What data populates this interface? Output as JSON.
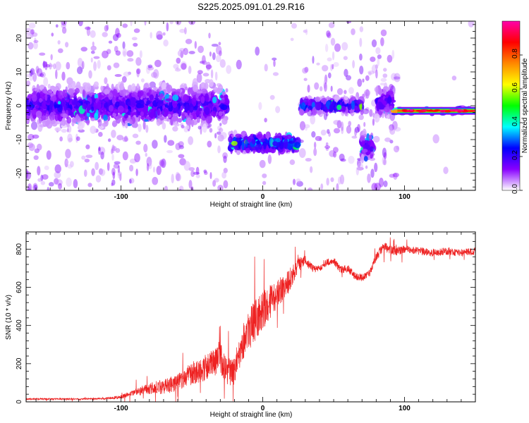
{
  "title": "S225.2025.091.01.29.R16",
  "chart_data": [
    {
      "type": "heatmap",
      "xlabel": "Height of straight line (km)",
      "ylabel": "Frequency (Hz)",
      "xlim": [
        -167,
        150
      ],
      "ylim": [
        -25,
        25
      ],
      "xticks": [
        -100,
        0,
        100
      ],
      "yticks": [
        -20,
        -10,
        0,
        10,
        20
      ],
      "colorbar": {
        "label": "Normalized spectral amplitude",
        "range": [
          0,
          1
        ],
        "ticks": [
          "0.0",
          "0.2",
          "0.4",
          "0.6",
          "0.8"
        ],
        "colors": [
          "#ffffff",
          "#8800ff",
          "#0000ff",
          "#00ffff",
          "#00ff00",
          "#ffff00",
          "#ff8800",
          "#ff0000",
          "#ff00aa"
        ]
      },
      "bands": [
        {
          "x": [
            -167,
            -25
          ],
          "freq": 0,
          "spread": 4.5,
          "amplitude": 0.22
        },
        {
          "x": [
            -23,
            25
          ],
          "freq": -11,
          "spread": 2.0,
          "amplitude": 0.35
        },
        {
          "x": [
            27,
            70
          ],
          "freq": 0,
          "spread": 1.5,
          "amplitude": 0.3
        },
        {
          "x": [
            70,
            78
          ],
          "freq": -12,
          "spread": 3.0,
          "amplitude": 0.2
        },
        {
          "x": [
            80,
            92
          ],
          "freq": 1,
          "spread": 3.5,
          "amplitude": 0.2
        },
        {
          "x": [
            92,
            150
          ],
          "freq": -1.5,
          "spread": 0.8,
          "amplitude": 0.85
        }
      ]
    },
    {
      "type": "line",
      "xlabel": "Height of straight line (km)",
      "ylabel": "SNR (10 * v/v)",
      "xlim": [
        -167,
        150
      ],
      "ylim": [
        0,
        890
      ],
      "xticks": [
        -100,
        0,
        100
      ],
      "yticks": [
        0,
        200,
        400,
        600,
        800
      ],
      "color": "#ee2222",
      "series": [
        {
          "x": [
            -167,
            -130,
            -110,
            -100,
            -90,
            -80,
            -70,
            -60,
            -50,
            -40,
            -35,
            -30,
            -25,
            -20,
            -15,
            -10,
            -5,
            0,
            5,
            10,
            15,
            20,
            25,
            30,
            35,
            40,
            45,
            50,
            55,
            60,
            65,
            70,
            75,
            80,
            85,
            90,
            95,
            100,
            110,
            120,
            130,
            140,
            150
          ],
          "values": [
            15,
            15,
            18,
            25,
            50,
            70,
            80,
            100,
            150,
            180,
            200,
            240,
            150,
            170,
            300,
            380,
            430,
            480,
            520,
            560,
            600,
            650,
            720,
            740,
            700,
            700,
            730,
            740,
            690,
            700,
            660,
            650,
            670,
            760,
            810,
            800,
            790,
            800,
            790,
            780,
            790,
            780,
            790
          ],
          "noise": [
            4,
            4,
            6,
            10,
            20,
            30,
            40,
            45,
            60,
            70,
            80,
            90,
            70,
            80,
            90,
            110,
            110,
            100,
            90,
            80,
            70,
            60,
            40,
            25,
            20,
            20,
            20,
            20,
            20,
            20,
            20,
            20,
            20,
            25,
            25,
            25,
            25,
            20,
            20,
            20,
            20,
            20,
            20
          ]
        }
      ]
    }
  ]
}
